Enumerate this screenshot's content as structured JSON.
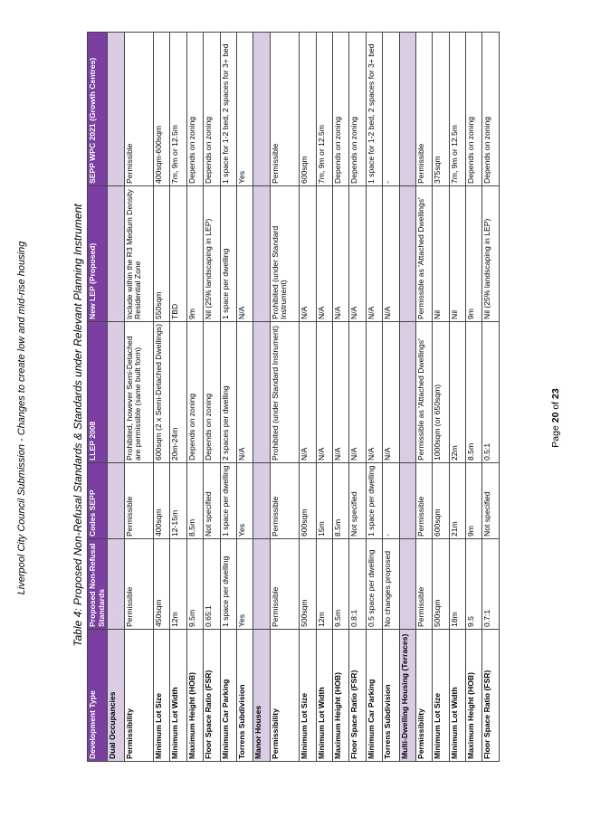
{
  "header": "Liverpool City Council Submission - Changes to create low and mid-rise housing",
  "caption": "Table 4: Proposed Non-Refusal Standards & Standards under Relevant Planning Instrument",
  "page": {
    "prefix": "Page ",
    "current": "20",
    "of": " of ",
    "total": "23"
  },
  "columns": [
    "Development Type",
    "Proposed Non-Refusal Standards",
    "Codes SEPP",
    "LLEP 2008",
    "New LEP (Proposed)",
    "SEPP WPC 2021 (Growth Centres)"
  ],
  "sections": [
    {
      "title": "Dual Occupancies",
      "rows": [
        [
          "Permissibility",
          "Permissible",
          "Permissible",
          "Prohibited, however Semi-Detached are permissible (same built form)",
          "Include within the R3 Medium Density Residential Zone",
          "Permissible"
        ],
        [
          "Minimum Lot Size",
          "450sqm",
          "400sqm",
          "600sqm (2 x Semi-Detached Dwellings)",
          "550sqm",
          "400sqm-600sqm"
        ],
        [
          "Minimum Lot Width",
          "12m",
          "12-15m",
          "20m-24m",
          "TBD",
          "7m, 9m or 12.5m"
        ],
        [
          "Maximum Height (HOB)",
          "9.5m",
          "8.5m",
          "Depends on zoning",
          "9m",
          "Depends on zoning"
        ],
        [
          "Floor Space Ratio (FSR)",
          "0.65:1",
          "Not specified",
          "Depends on zoning",
          "Nil (25% landscaping in LEP)",
          "Depends on zoning"
        ],
        [
          "Minimum Car Parking",
          "1 space per dwelling",
          "1 space per dwelling",
          "2 spaces per dwelling",
          "1 space per dwelling",
          "1 space for 1-2 bed, 2 spaces for 3+ bed"
        ],
        [
          "Torrens Subdivision",
          "Yes",
          "Yes",
          "N/A",
          "N/A",
          "Yes"
        ]
      ]
    },
    {
      "title": "Manor Houses",
      "rows": [
        [
          "Permissibility",
          "Permissible",
          "Permissible",
          "Prohibited (under Standard Instrument)",
          "Prohibited (under Standard Instrument)",
          "Permissible"
        ],
        [
          "Minimum Lot Size",
          "500sqm",
          "600sqm",
          "N/A",
          "N/A",
          "600sqm"
        ],
        [
          "Minimum Lot Width",
          "12m",
          "15m",
          "N/A",
          "N/A",
          "7m, 9m or 12.5m"
        ],
        [
          "Maximum Height (HOB)",
          "9.5m",
          "8.5m",
          "N/A",
          "N/A",
          "Depends on zoning"
        ],
        [
          "Floor Space Ratio (FSR)",
          "0.8:1",
          "Not specified",
          "N/A",
          "N/A",
          "Depends on zoning"
        ],
        [
          "Minimum Car Parking",
          "0.5 space per dwelling",
          "1 space per dwelling",
          "N/A",
          "N/A",
          "1 space for 1-2 bed, 2 spaces for 3+ bed"
        ],
        [
          "Torrens Subdivision",
          "No changes proposed",
          "-",
          "N/A",
          "N/A",
          "-"
        ]
      ]
    },
    {
      "title": "Multi-Dwelling Housing (Terraces)",
      "rows": [
        [
          "Permissibility",
          "Permissible",
          "Permissible",
          "Permissible as 'Attached Dwellings'",
          "Permissible as 'Attached Dwellings'",
          "Permissible"
        ],
        [
          "Minimum Lot Size",
          "500sqm",
          "600sqm",
          "1000sqm (or 650sqm)",
          "Nil",
          "375sqm"
        ],
        [
          "Minimum Lot Width",
          "18m",
          "21m",
          "22m",
          "Nil",
          "7m, 9m or 12.5m"
        ],
        [
          "Maximum Height (HOB)",
          "9.5",
          "9m",
          "8.5m",
          "9m",
          "Depends on zoning"
        ],
        [
          "Floor Space Ratio (FSR)",
          "0.7:1",
          "Not specified",
          "0.5:1",
          "Nil (25% landscaping in LEP)",
          "Depends on zoning"
        ]
      ]
    }
  ]
}
